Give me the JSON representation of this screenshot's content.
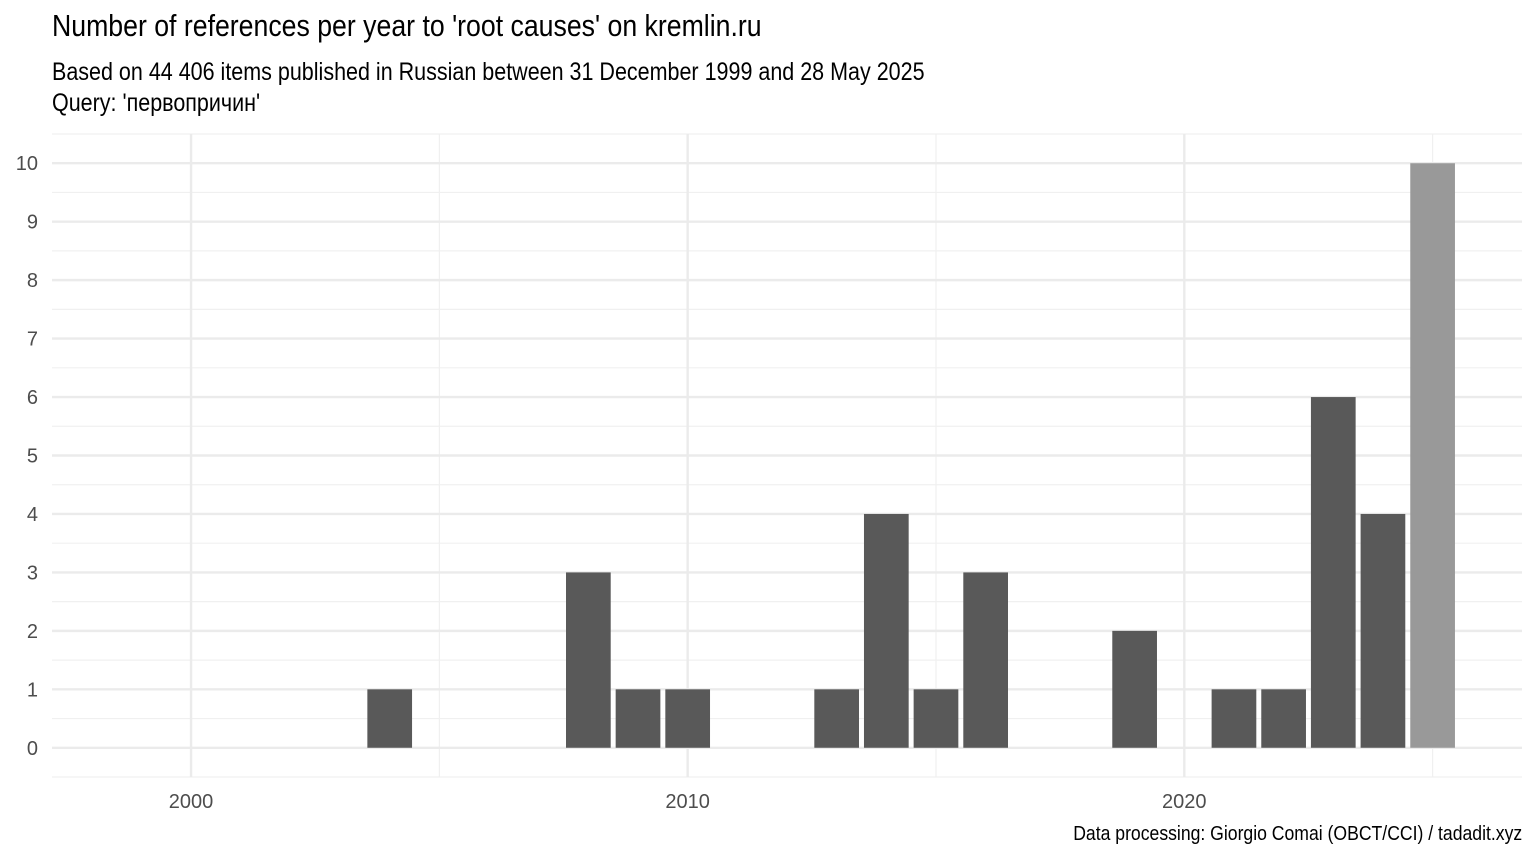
{
  "chart_data": {
    "type": "bar",
    "title": "Number of references per year to 'root causes' on kremlin.ru",
    "subtitle": [
      "Based on 44 406 items published in Russian between 31 December 1999 and 28 May 2025",
      "Query: 'первопричин'"
    ],
    "caption": "Data processing: Giorgio Comai (OBCT/CCI) / tadadit.xyz",
    "xlabel": "",
    "ylabel": "",
    "x_ticks": [
      2000,
      2010,
      2020
    ],
    "y_ticks": [
      0,
      1,
      2,
      3,
      4,
      5,
      6,
      7,
      8,
      9,
      10
    ],
    "xlim": [
      1997.2,
      2026.8
    ],
    "ylim": [
      -0.5,
      10.5
    ],
    "grid": true,
    "legend": "none",
    "bar_color": "#595959",
    "partial_year_color": "#999999",
    "bars": [
      {
        "year": 2004,
        "value": 1,
        "partial": false
      },
      {
        "year": 2008,
        "value": 3,
        "partial": false
      },
      {
        "year": 2009,
        "value": 1,
        "partial": false
      },
      {
        "year": 2010,
        "value": 1,
        "partial": false
      },
      {
        "year": 2013,
        "value": 1,
        "partial": false
      },
      {
        "year": 2014,
        "value": 4,
        "partial": false
      },
      {
        "year": 2015,
        "value": 1,
        "partial": false
      },
      {
        "year": 2016,
        "value": 3,
        "partial": false
      },
      {
        "year": 2019,
        "value": 2,
        "partial": false
      },
      {
        "year": 2021,
        "value": 1,
        "partial": false
      },
      {
        "year": 2022,
        "value": 1,
        "partial": false
      },
      {
        "year": 2023,
        "value": 6,
        "partial": false
      },
      {
        "year": 2024,
        "value": 4,
        "partial": false
      },
      {
        "year": 2025,
        "value": 10,
        "partial": true
      }
    ]
  }
}
